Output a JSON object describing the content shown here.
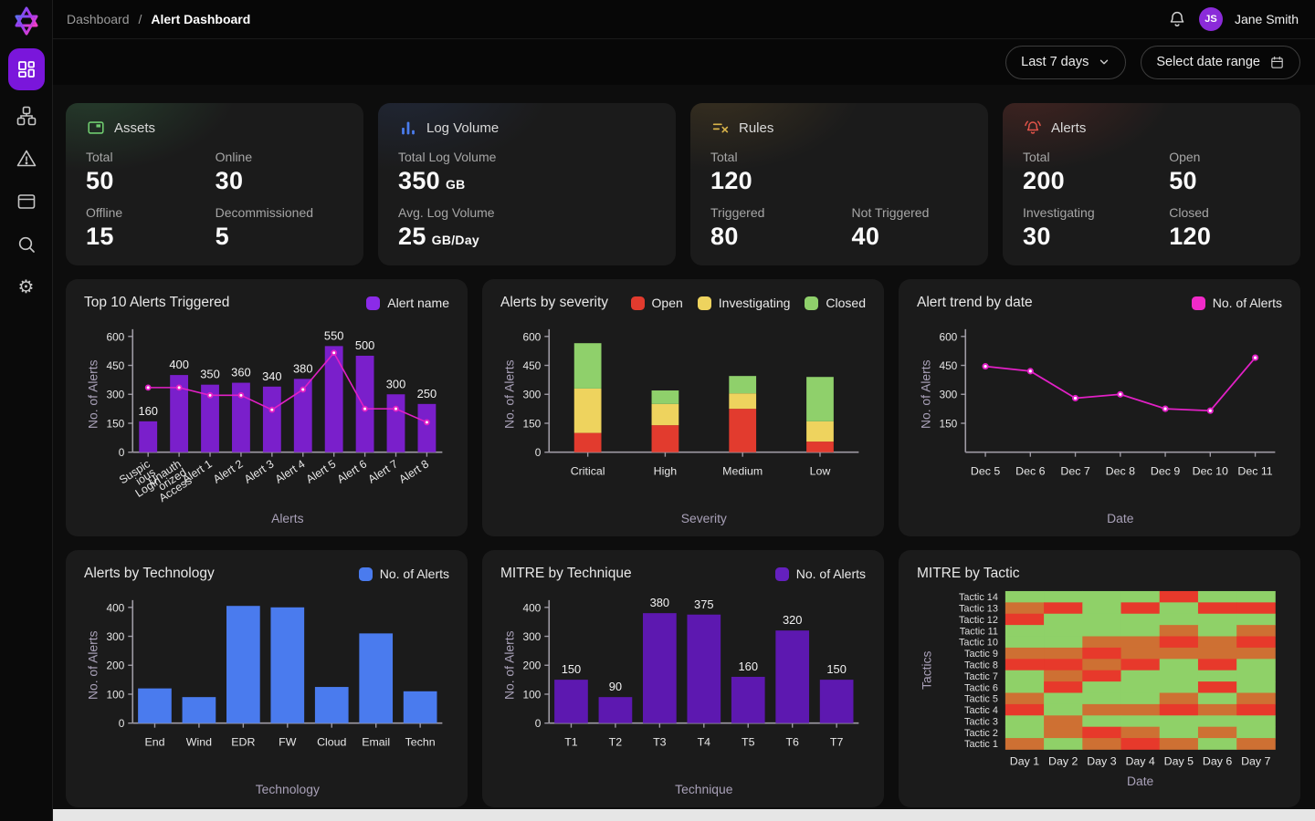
{
  "sidebar": {
    "logo_icon": "star-logo",
    "items": [
      {
        "icon": "dashboard-grid-icon",
        "active": true
      },
      {
        "icon": "workflow-icon"
      },
      {
        "icon": "alert-triangle-icon"
      },
      {
        "icon": "window-icon"
      },
      {
        "icon": "search-icon"
      },
      {
        "icon": "gear-icon",
        "glyph": "⚙"
      }
    ]
  },
  "topbar": {
    "breadcrumb": {
      "parent": "Dashboard",
      "separator": "/",
      "current": "Alert Dashboard"
    },
    "bell_icon": "bell-icon",
    "user": {
      "initials": "JS",
      "name": "Jane Smith"
    }
  },
  "filters": {
    "time_range": {
      "label": "Last 7 days",
      "icon": "chevron-down-icon"
    },
    "date_range": {
      "label": "Select date range",
      "icon": "calendar-icon"
    }
  },
  "stats": {
    "assets": {
      "title": "Assets",
      "icon": "assets-icon",
      "accent": "#6FCB6F",
      "items": [
        {
          "label": "Total",
          "value": "50"
        },
        {
          "label": "Online",
          "value": "30"
        },
        {
          "label": "Offline",
          "value": "15"
        },
        {
          "label": "Decommissioned",
          "value": "5"
        }
      ]
    },
    "log_volume": {
      "title": "Log Volume",
      "icon": "log-volume-icon",
      "accent": "#4A7DEE",
      "items": [
        {
          "label": "Total Log Volume",
          "value": "350",
          "unit": "GB"
        },
        {
          "label": "Avg. Log Volume",
          "value": "25",
          "unit": "GB/Day"
        }
      ]
    },
    "rules": {
      "title": "Rules",
      "icon": "rules-icon",
      "accent": "#D9B44A",
      "items": [
        {
          "label": "Total",
          "value": "120"
        },
        {
          "label": "Triggered",
          "value": "80"
        },
        {
          "label": "Not Triggered",
          "value": "40"
        }
      ]
    },
    "alerts": {
      "title": "Alerts",
      "icon": "alerts-bell-icon",
      "accent": "#E2544A",
      "items": [
        {
          "label": "Total",
          "value": "200"
        },
        {
          "label": "Open",
          "value": "50"
        },
        {
          "label": "Investigating",
          "value": "30"
        },
        {
          "label": "Closed",
          "value": "120"
        }
      ]
    }
  },
  "chart_data": [
    {
      "type": "bar",
      "title": "Top 10 Alerts Triggered",
      "legend": [
        {
          "label": "Alert name",
          "color": "#8B2BE8"
        }
      ],
      "categories": [
        "Suspicious Login",
        "Unauthorized Access",
        "Alert 1",
        "Alert 2",
        "Alert 3",
        "Alert 4",
        "Alert 5",
        "Alert 6",
        "Alert 7",
        "Alert 8"
      ],
      "categories_display": [
        [
          "Suspic",
          "ious",
          "Login"
        ],
        [
          "Unauth",
          "orized",
          "Access"
        ],
        [
          "Alert 1"
        ],
        [
          "Alert 2"
        ],
        [
          "Alert 3"
        ],
        [
          "Alert 4"
        ],
        [
          "Alert 5"
        ],
        [
          "Alert 6"
        ],
        [
          "Alert 7"
        ],
        [
          "Alert 8"
        ]
      ],
      "values": [
        160,
        400,
        350,
        360,
        340,
        380,
        550,
        500,
        300,
        250
      ],
      "line_overlay": {
        "values": [
          335,
          335,
          295,
          295,
          220,
          325,
          515,
          225,
          225,
          155
        ],
        "color": "#E220C6"
      },
      "xlabel": "Alerts",
      "ylabel": "No. of Alerts",
      "ylim": [
        0,
        600
      ],
      "yticks": [
        0,
        150,
        300,
        450,
        600
      ],
      "bar_color": "#7A1FCB",
      "show_value_labels": true,
      "rotate_x_labels": true
    },
    {
      "type": "stacked-bar",
      "title": "Alerts by severity",
      "categories": [
        "Critical",
        "High",
        "Medium",
        "Low"
      ],
      "series": [
        {
          "name": "Open",
          "color": "#E23B2E",
          "values": [
            100,
            140,
            225,
            55
          ]
        },
        {
          "name": "Investigating",
          "color": "#EED35E",
          "values": [
            230,
            110,
            80,
            105
          ]
        },
        {
          "name": "Closed",
          "color": "#8FD06B",
          "values": [
            235,
            70,
            90,
            230
          ]
        }
      ],
      "xlabel": "Severity",
      "ylabel": "No. of Alerts",
      "ylim": [
        0,
        600
      ],
      "yticks": [
        0,
        150,
        300,
        450,
        600
      ]
    },
    {
      "type": "line",
      "title": "Alert trend by date",
      "legend": [
        {
          "label": "No. of Alerts",
          "color": "#F12AC8"
        }
      ],
      "x": [
        "Dec 5",
        "Dec 6",
        "Dec 7",
        "Dec 8",
        "Dec 9",
        "Dec 10",
        "Dec 11"
      ],
      "values": [
        445,
        420,
        280,
        300,
        225,
        215,
        490
      ],
      "xlabel": "Date",
      "ylabel": "No. of Alerts",
      "ylim": [
        0,
        600
      ],
      "yticks": [
        150,
        300,
        450,
        600
      ],
      "line_color": "#E220C6"
    },
    {
      "type": "bar",
      "title": "Alerts by Technology",
      "legend": [
        {
          "label": "No. of Alerts",
          "color": "#4A7BEE"
        }
      ],
      "categories": [
        "End",
        "Wind",
        "EDR",
        "FW",
        "Cloud",
        "Email",
        "Techn"
      ],
      "values": [
        120,
        90,
        405,
        400,
        125,
        310,
        110
      ],
      "xlabel": "Technology",
      "ylabel": "No. of Alerts",
      "ylim": [
        0,
        400
      ],
      "yticks": [
        0,
        100,
        200,
        300,
        400
      ],
      "bar_color": "#4A7BEE",
      "show_value_labels": false
    },
    {
      "type": "bar",
      "title": "MITRE by Technique",
      "legend": [
        {
          "label": "No. of Alerts",
          "color": "#6420BE"
        }
      ],
      "categories": [
        "T1",
        "T2",
        "T3",
        "T4",
        "T5",
        "T6",
        "T7"
      ],
      "values": [
        150,
        90,
        380,
        375,
        160,
        320,
        150
      ],
      "xlabel": "Technique",
      "ylabel": "No. of Alerts",
      "ylim": [
        0,
        400
      ],
      "yticks": [
        0,
        100,
        200,
        300,
        400
      ],
      "bar_color": "#5D18B0",
      "show_value_labels": true
    },
    {
      "type": "heatmap",
      "title": "MITRE by Tactic",
      "x": [
        "Day 1",
        "Day 2",
        "Day 3",
        "Day 4",
        "Day 5",
        "Day 6",
        "Day 7"
      ],
      "y_top_to_bottom": [
        "Tactic 14",
        "Tactic 13",
        "Tactic 12",
        "Tactic 11",
        "Tactic 10",
        "Tactic 9",
        "Tactic 8",
        "Tactic 7",
        "Tactic 6",
        "Tactic 5",
        "Tactic 4",
        "Tactic 3",
        "Tactic 2",
        "Tactic 1"
      ],
      "palette": {
        "g": "#8FD168",
        "o": "#CE7033",
        "r": "#E7392B"
      },
      "rows": [
        [
          "g",
          "g",
          "g",
          "g",
          "r",
          "g",
          "g"
        ],
        [
          "o",
          "r",
          "g",
          "r",
          "g",
          "r",
          "r"
        ],
        [
          "r",
          "g",
          "g",
          "g",
          "g",
          "g",
          "g"
        ],
        [
          "g",
          "g",
          "g",
          "g",
          "o",
          "g",
          "o"
        ],
        [
          "g",
          "g",
          "o",
          "o",
          "r",
          "o",
          "r"
        ],
        [
          "o",
          "o",
          "r",
          "o",
          "o",
          "o",
          "o"
        ],
        [
          "r",
          "r",
          "o",
          "r",
          "g",
          "r",
          "g"
        ],
        [
          "g",
          "o",
          "r",
          "g",
          "g",
          "g",
          "g"
        ],
        [
          "g",
          "r",
          "g",
          "g",
          "g",
          "r",
          "g"
        ],
        [
          "o",
          "g",
          "g",
          "g",
          "o",
          "g",
          "o"
        ],
        [
          "r",
          "g",
          "o",
          "o",
          "r",
          "o",
          "r"
        ],
        [
          "g",
          "o",
          "g",
          "g",
          "g",
          "g",
          "g"
        ],
        [
          "g",
          "o",
          "r",
          "o",
          "g",
          "o",
          "g"
        ],
        [
          "o",
          "g",
          "o",
          "r",
          "o",
          "g",
          "o"
        ]
      ],
      "xlabel": "Date",
      "ylabel": "Tactics"
    }
  ]
}
